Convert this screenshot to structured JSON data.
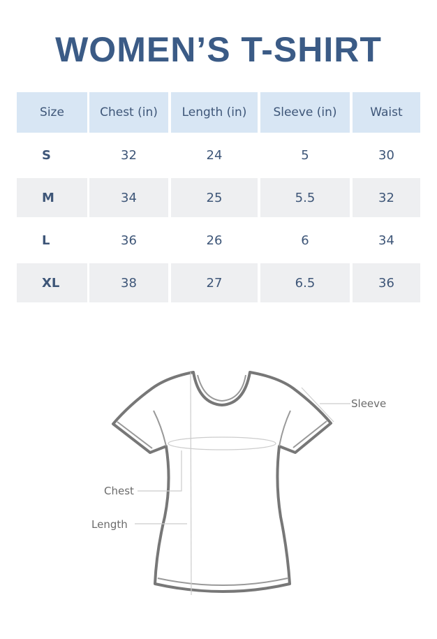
{
  "title": "WOMEN’S T-SHIRT",
  "table": {
    "headers": [
      "Size",
      "Chest (in)",
      "Length (in)",
      "Sleeve (in)",
      "Waist"
    ],
    "rows": [
      [
        "S",
        "32",
        "24",
        "5",
        "30"
      ],
      [
        "M",
        "34",
        "25",
        "5.5",
        "32"
      ],
      [
        "L",
        "36",
        "26",
        "6",
        "34"
      ],
      [
        "XL",
        "38",
        "27",
        "6.5",
        "36"
      ]
    ]
  },
  "diagram": {
    "labels": {
      "sleeve": "Sleeve",
      "chest": "Chest",
      "length": "Length"
    }
  },
  "colors": {
    "title": "#3b5b86",
    "header_bg": "#d8e6f4",
    "stripe_bg": "#eeeff1",
    "text": "#3e5678"
  }
}
